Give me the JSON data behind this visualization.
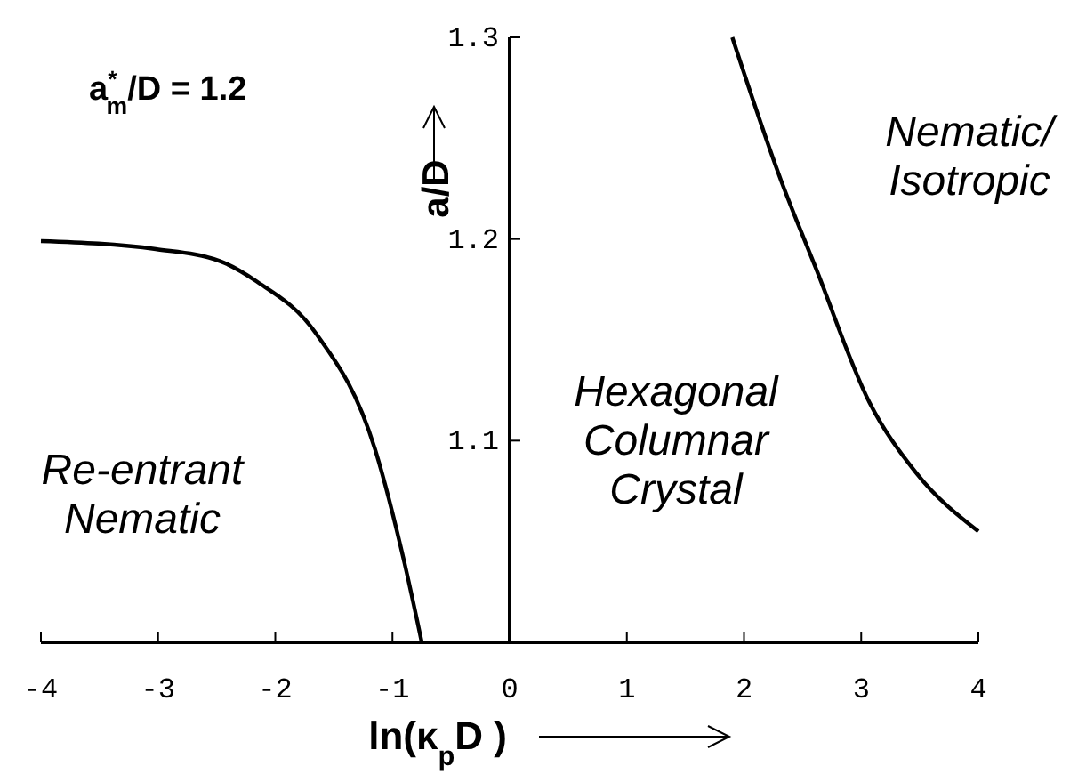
{
  "chart_data": {
    "type": "line",
    "xlabel": "ln(κ$_{p}$D )",
    "ylabel": "a/D",
    "xlim": [
      -4,
      4
    ],
    "xticks": [
      -4,
      -3,
      -2,
      -1,
      0,
      1,
      2,
      3,
      4
    ],
    "ylim": [
      1.0,
      1.3
    ],
    "yticks": [
      1.1,
      1.2,
      1.3
    ],
    "series": [
      {
        "color": "#000000",
        "x": [
          -4.0,
          -3.02,
          -2.47,
          -2.16,
          -1.65,
          -1.15,
          -0.9,
          -0.75
        ],
        "values": [
          1.199,
          1.195,
          1.189,
          1.179,
          1.153,
          1.096,
          1.04,
          1.0
        ]
      },
      {
        "color": "#000000",
        "x": [
          1.9,
          2.31,
          2.61,
          3.07,
          3.47,
          4.0
        ],
        "values": [
          1.3,
          1.23,
          1.186,
          1.119,
          1.084,
          1.055
        ]
      }
    ],
    "annotations": [
      "a$^{*}$$_{m}$/D = 1.2",
      "Re-entrant\nNematic",
      "Hexagonal\nColumnar\nCrystal",
      "Nematic/\nIsotropic"
    ],
    "marker": "none",
    "line_style": "solid",
    "grid": false
  }
}
